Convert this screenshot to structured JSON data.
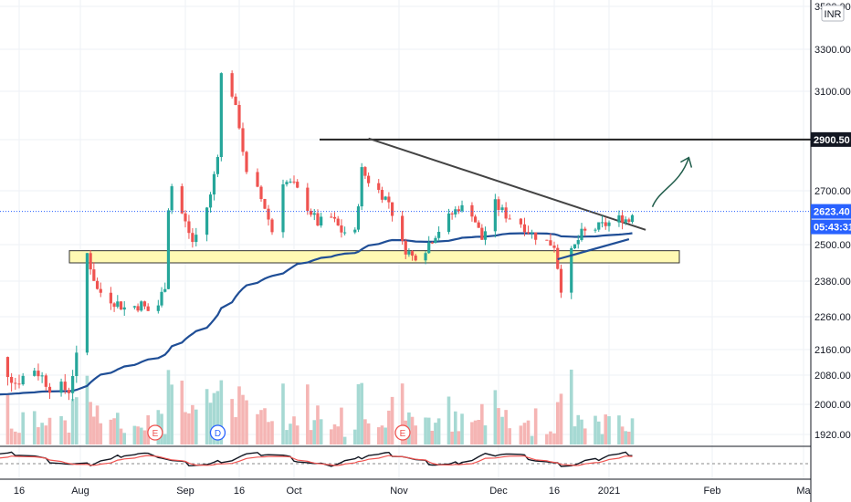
{
  "colors": {
    "up": "#26a69a",
    "down": "#ef5350",
    "ma": "#1f4e96",
    "zone_fill": "#fff9b3",
    "grid": "#eef1f6",
    "axis_text": "#131722"
  },
  "chart_data": {
    "type": "candlestick",
    "currency": "INR",
    "y_ticks": [
      "3500.00",
      "3300.00",
      "3100.00",
      "2900.00",
      "2700.00",
      "2500.00",
      "2380.00",
      "2260.00",
      "2160.00",
      "2080.00",
      "2000.00",
      "1920.00"
    ],
    "y_tick_values": [
      3500,
      3300,
      3100,
      2900,
      2700,
      2500,
      2380,
      2260,
      2160,
      2080,
      2000,
      1920
    ],
    "x_ticks": [
      "16",
      "Aug",
      "Sep",
      "16",
      "Oct",
      "Nov",
      "Dec",
      "16",
      "2021",
      "Feb",
      "Ma"
    ],
    "x_tick_dates": [
      "2020-07-16",
      "2020-08-01",
      "2020-09-01",
      "2020-09-16",
      "2020-10-01",
      "2020-11-01",
      "2020-12-01",
      "2020-12-16",
      "2021-01-01",
      "2021-02-01",
      "2021-03-01"
    ],
    "last_price": "2623.40",
    "countdown": "05:43:31",
    "resistance_level": "2900.50",
    "resistance_value": 2900.5,
    "support_zone": [
      2440,
      2480
    ],
    "descending_trendline": [
      [
        "2020-10-23",
        2905
      ],
      [
        "2021-01-12",
        2555
      ]
    ],
    "rising_trendline": [
      [
        "2020-12-17",
        2452
      ],
      [
        "2021-01-07",
        2520
      ]
    ],
    "projection_arrow": [
      [
        "2021-01-08",
        2640
      ],
      [
        "2021-01-14",
        2830
      ]
    ],
    "candles_approx": [
      [
        "2020-07-06",
        1970,
        2050,
        1950,
        2020
      ],
      [
        "2020-07-10",
        2020,
        2140,
        2000,
        2130
      ],
      [
        "2020-07-15",
        2130,
        2150,
        2040,
        2060
      ],
      [
        "2020-07-20",
        2060,
        2120,
        2030,
        2100
      ],
      [
        "2020-07-24",
        2100,
        2110,
        2040,
        2050
      ],
      [
        "2020-07-29",
        2050,
        2080,
        2020,
        2040
      ],
      [
        "2020-08-01",
        2050,
        2200,
        2040,
        2180
      ],
      [
        "2020-08-03",
        2180,
        2490,
        2170,
        2470
      ],
      [
        "2020-08-06",
        2470,
        2490,
        2320,
        2350
      ],
      [
        "2020-08-10",
        2350,
        2380,
        2300,
        2320
      ],
      [
        "2020-08-14",
        2320,
        2360,
        2280,
        2290
      ],
      [
        "2020-08-19",
        2290,
        2320,
        2270,
        2300
      ],
      [
        "2020-08-22",
        2300,
        2320,
        2260,
        2270
      ],
      [
        "2020-08-24",
        2270,
        2310,
        2260,
        2300
      ],
      [
        "2020-08-26",
        2300,
        2380,
        2290,
        2370
      ],
      [
        "2020-08-27",
        2370,
        2650,
        2360,
        2640
      ],
      [
        "2020-08-28",
        2640,
        2850,
        2620,
        2720
      ],
      [
        "2020-09-01",
        2720,
        2760,
        2560,
        2580
      ],
      [
        "2020-09-03",
        2580,
        2620,
        2500,
        2510
      ],
      [
        "2020-09-05",
        2510,
        2580,
        2490,
        2560
      ],
      [
        "2020-09-08",
        2560,
        2700,
        2540,
        2680
      ],
      [
        "2020-09-10",
        2680,
        2880,
        2660,
        2850
      ],
      [
        "2020-09-11",
        2850,
        3260,
        2840,
        3180
      ],
      [
        "2020-09-14",
        3180,
        3220,
        3060,
        3090
      ],
      [
        "2020-09-16",
        3090,
        3100,
        2940,
        2960
      ],
      [
        "2020-09-18",
        2960,
        2980,
        2740,
        2760
      ],
      [
        "2020-09-21",
        2760,
        2800,
        2660,
        2700
      ],
      [
        "2020-09-23",
        2700,
        2740,
        2620,
        2640
      ],
      [
        "2020-09-25",
        2640,
        2660,
        2520,
        2550
      ],
      [
        "2020-09-28",
        2550,
        2760,
        2540,
        2740
      ],
      [
        "2020-10-01",
        2740,
        2800,
        2700,
        2720
      ],
      [
        "2020-10-05",
        2720,
        2740,
        2620,
        2640
      ],
      [
        "2020-10-08",
        2640,
        2680,
        2560,
        2580
      ],
      [
        "2020-10-12",
        2580,
        2620,
        2530,
        2600
      ],
      [
        "2020-10-15",
        2600,
        2620,
        2540,
        2550
      ],
      [
        "2020-10-19",
        2550,
        2580,
        2520,
        2540
      ],
      [
        "2020-10-21",
        2540,
        2790,
        2530,
        2780
      ],
      [
        "2020-10-23",
        2780,
        2800,
        2710,
        2740
      ],
      [
        "2020-10-26",
        2740,
        2760,
        2680,
        2700
      ],
      [
        "2020-10-29",
        2700,
        2720,
        2640,
        2660
      ],
      [
        "2020-11-02",
        2660,
        2670,
        2480,
        2500
      ],
      [
        "2020-11-05",
        2500,
        2520,
        2440,
        2460
      ],
      [
        "2020-11-09",
        2460,
        2500,
        2430,
        2490
      ],
      [
        "2020-11-12",
        2490,
        2560,
        2470,
        2540
      ],
      [
        "2020-11-16",
        2540,
        2620,
        2520,
        2600
      ],
      [
        "2020-11-19",
        2600,
        2660,
        2580,
        2640
      ],
      [
        "2020-11-23",
        2640,
        2680,
        2600,
        2620
      ],
      [
        "2020-11-26",
        2620,
        2640,
        2500,
        2520
      ],
      [
        "2020-11-30",
        2520,
        2660,
        2510,
        2650
      ],
      [
        "2020-12-03",
        2650,
        2670,
        2590,
        2610
      ],
      [
        "2020-12-07",
        2610,
        2630,
        2560,
        2580
      ],
      [
        "2020-12-10",
        2580,
        2600,
        2520,
        2540
      ],
      [
        "2020-12-14",
        2540,
        2560,
        2500,
        2510
      ],
      [
        "2020-12-16",
        2510,
        2530,
        2480,
        2500
      ],
      [
        "2020-12-18",
        2500,
        2520,
        2340,
        2360
      ],
      [
        "2020-12-21",
        2360,
        2480,
        2350,
        2470
      ],
      [
        "2020-12-24",
        2470,
        2560,
        2460,
        2540
      ],
      [
        "2020-12-28",
        2540,
        2570,
        2520,
        2560
      ],
      [
        "2021-01-01",
        2560,
        2600,
        2540,
        2580
      ],
      [
        "2021-01-05",
        2580,
        2640,
        2560,
        2600
      ],
      [
        "2021-01-07",
        2600,
        2630,
        2570,
        2590
      ],
      [
        "2021-01-08",
        2590,
        2640,
        2580,
        2623.4
      ]
    ]
  }
}
